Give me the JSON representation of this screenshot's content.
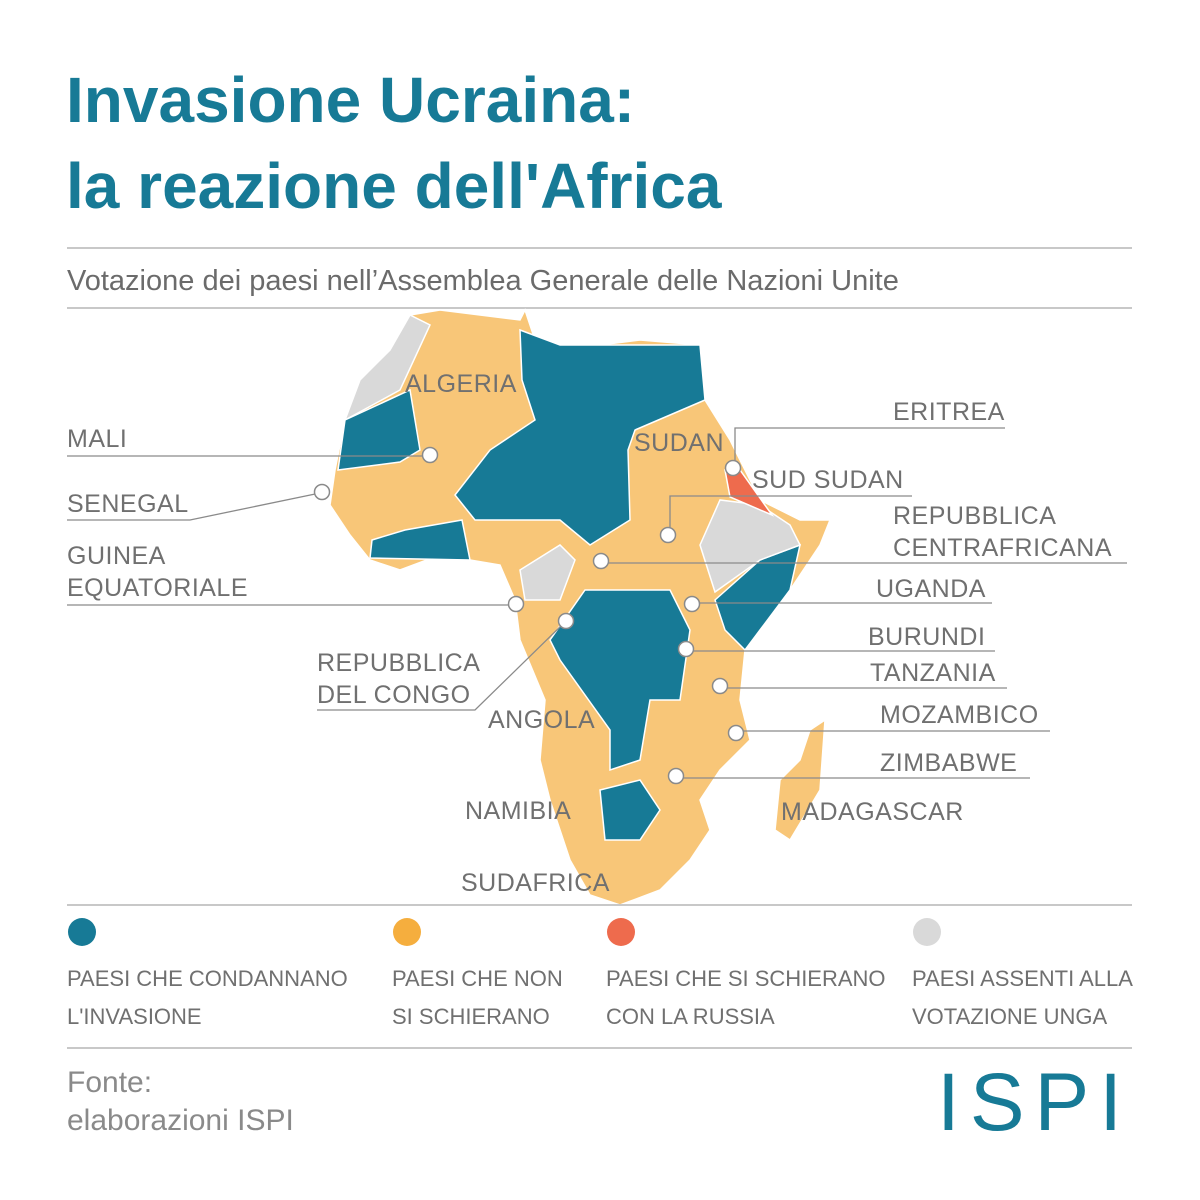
{
  "header": {
    "title_lines": [
      "Invasione Ucraina:",
      "la reazione dell'Africa"
    ],
    "subtitle": "Votazione dei paesi nell’Assemblea Generale delle Nazioni Unite"
  },
  "map": {
    "country_labels": [
      "ALGERIA",
      "SUDAN",
      "ANGOLA",
      "NAMIBIA",
      "MADAGASCAR",
      "SUDAFRICA"
    ],
    "callouts": [
      {
        "lines": [
          "MALI"
        ]
      },
      {
        "lines": [
          "SENEGAL"
        ]
      },
      {
        "lines": [
          "GUINEA",
          "EQUATORIALE"
        ]
      },
      {
        "lines": [
          "REPUBBLICA",
          "DEL CONGO"
        ]
      },
      {
        "lines": [
          "ERITREA"
        ]
      },
      {
        "lines": [
          "SUD SUDAN"
        ]
      },
      {
        "lines": [
          "REPUBBLICA",
          "CENTRAFRICANA"
        ]
      },
      {
        "lines": [
          "UGANDA"
        ]
      },
      {
        "lines": [
          "BURUNDI"
        ]
      },
      {
        "lines": [
          "TANZANIA"
        ]
      },
      {
        "lines": [
          "MOZAMBICO"
        ]
      },
      {
        "lines": [
          "ZIMBABWE"
        ]
      }
    ]
  },
  "legend": {
    "items": [
      {
        "color": "#177a96",
        "lines": [
          "PAESI CHE CONDANNANO",
          "L'INVASIONE"
        ]
      },
      {
        "color": "#f5ae3e",
        "lines": [
          "PAESI CHE NON",
          "SI SCHIERANO"
        ]
      },
      {
        "color": "#ee6b4d",
        "lines": [
          "PAESI CHE SI SCHIERANO",
          "CON LA RUSSIA"
        ]
      },
      {
        "color": "#d9d9d9",
        "lines": [
          "PAESI ASSENTI ALLA",
          "VOTAZIONE UNGA"
        ]
      }
    ]
  },
  "footer": {
    "source_lines": [
      "Fonte:",
      "elaborazioni ISPI"
    ],
    "logo": "ISPI"
  }
}
